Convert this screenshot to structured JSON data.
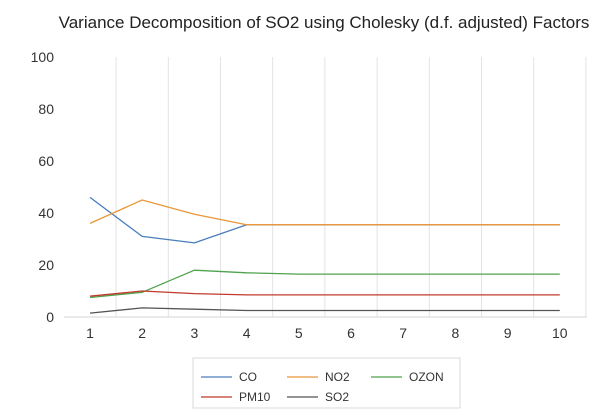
{
  "chart_data": {
    "type": "line",
    "title": "Variance Decomposition of SO2 using Cholesky (d.f. adjusted) Factors",
    "x": [
      1,
      2,
      3,
      4,
      5,
      6,
      7,
      8,
      9,
      10
    ],
    "ylim": [
      0,
      100
    ],
    "y_ticks": [
      0,
      20,
      40,
      60,
      80,
      100
    ],
    "grid": "vertical",
    "legend_position": "bottom",
    "series": [
      {
        "name": "CO",
        "color": "#4a7ebb",
        "values": [
          46,
          31,
          28.5,
          35.5,
          35.5,
          35.5,
          35.5,
          35.5,
          35.5,
          35.5
        ]
      },
      {
        "name": "NO2",
        "color": "#e8973a",
        "values": [
          36,
          45,
          39.5,
          35.5,
          35.5,
          35.5,
          35.5,
          35.5,
          35.5,
          35.5
        ]
      },
      {
        "name": "OZON",
        "color": "#4ea24e",
        "values": [
          7.5,
          9.5,
          18,
          17,
          16.5,
          16.5,
          16.5,
          16.5,
          16.5,
          16.5
        ]
      },
      {
        "name": "PM10",
        "color": "#c0392b",
        "values": [
          8,
          10,
          9,
          8.5,
          8.5,
          8.5,
          8.5,
          8.5,
          8.5,
          8.5
        ]
      },
      {
        "name": "SO2",
        "color": "#555555",
        "values": [
          1.5,
          3.5,
          3,
          2.5,
          2.5,
          2.5,
          2.5,
          2.5,
          2.5,
          2.5
        ]
      }
    ]
  }
}
